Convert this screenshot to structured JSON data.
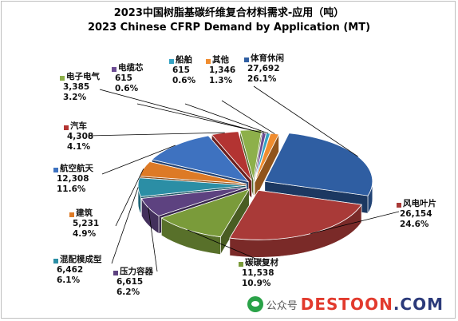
{
  "title": {
    "line1": "2023中国树脂基碳纤维复合材料需求-应用（吨）",
    "line2": "2023 Chinese CFRP Demand by Application (MT)"
  },
  "chart_data": {
    "type": "pie",
    "style": "3d-exploded",
    "title": "2023中国树脂基碳纤维复合材料需求-应用（吨） / 2023 Chinese CFRP Demand by Application (MT)",
    "slices": [
      {
        "label": "体育休闲",
        "value": 27692,
        "value_text": "27,692",
        "percent_text": "26.1%",
        "color": "#2f5ea2"
      },
      {
        "label": "风电叶片",
        "value": 26154,
        "value_text": "26,154",
        "percent_text": "24.6%",
        "color": "#a93a38"
      },
      {
        "label": "碳碳复材",
        "value": 11538,
        "value_text": "11,538",
        "percent_text": "10.9%",
        "color": "#7a9b3a"
      },
      {
        "label": "压力容器",
        "value": 6615,
        "value_text": "6,615",
        "percent_text": "6.2%",
        "color": "#5d4280"
      },
      {
        "label": "混配模成型",
        "value": 6462,
        "value_text": "6,462",
        "percent_text": "6.1%",
        "color": "#2b8ea5"
      },
      {
        "label": "建筑",
        "value": 5231,
        "value_text": "5,231",
        "percent_text": "4.9%",
        "color": "#dd7a26"
      },
      {
        "label": "航空航天",
        "value": 12308,
        "value_text": "12,308",
        "percent_text": "11.6%",
        "color": "#3e72c0"
      },
      {
        "label": "汽车",
        "value": 4308,
        "value_text": "4,308",
        "percent_text": "4.1%",
        "color": "#b33432"
      },
      {
        "label": "电子电气",
        "value": 3385,
        "value_text": "3,385",
        "percent_text": "3.2%",
        "color": "#8db04a"
      },
      {
        "label": "电缆芯",
        "value": 615,
        "value_text": "615",
        "percent_text": "0.6%",
        "color": "#6c4c93"
      },
      {
        "label": "船舶",
        "value": 615,
        "value_text": "615",
        "percent_text": "0.6%",
        "color": "#35a3c3"
      },
      {
        "label": "其他",
        "value": 1346,
        "value_text": "1,346",
        "percent_text": "1.3%",
        "color": "#f08c2e"
      }
    ]
  },
  "watermark": {
    "prefix": "公众号",
    "brand_red": "DESTOON",
    "brand_blue": ".COM"
  }
}
